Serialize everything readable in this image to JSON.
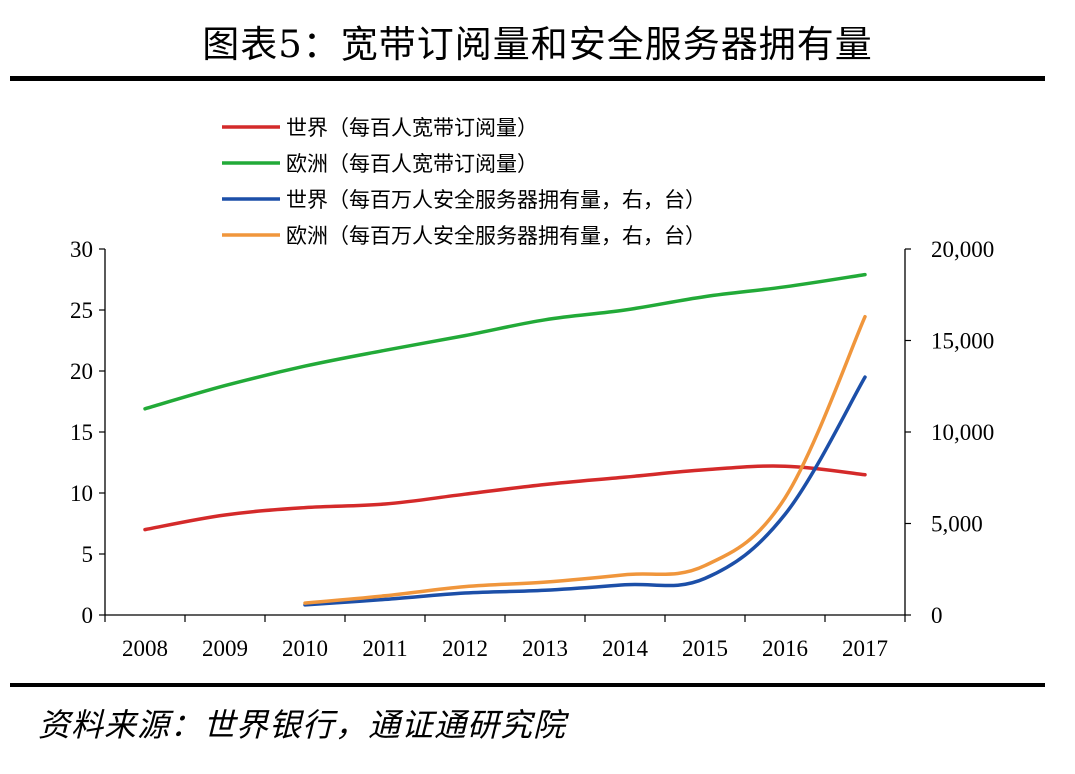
{
  "title": "图表5：宽带订阅量和安全服务器拥有量",
  "source": "资料来源：世界银行，通证通研究院",
  "chart_data": {
    "type": "line",
    "x": [
      2008,
      2009,
      2010,
      2011,
      2012,
      2013,
      2014,
      2015,
      2016,
      2017
    ],
    "x_tick_labels": [
      "2008",
      "2009",
      "2010",
      "2011",
      "2012",
      "2013",
      "2014",
      "2015",
      "2016",
      "2017"
    ],
    "y_left": {
      "min": 0,
      "max": 30,
      "ticks": [
        0,
        5,
        10,
        15,
        20,
        25,
        30
      ],
      "tick_labels": [
        "0",
        "5",
        "10",
        "15",
        "20",
        "25",
        "30"
      ]
    },
    "y_right": {
      "min": 0,
      "max": 20000,
      "ticks": [
        0,
        5000,
        10000,
        15000,
        20000
      ],
      "tick_labels": [
        "0",
        "5,000",
        "10,000",
        "15,000",
        "20,000"
      ]
    },
    "legend_placement": "top-left",
    "grid": false,
    "series": [
      {
        "name": "世界（每百人宽带订阅量）",
        "axis": "left",
        "color": "#d42a2a",
        "x": [
          2008,
          2009,
          2010,
          2011,
          2012,
          2013,
          2014,
          2015,
          2016,
          2017
        ],
        "values": [
          7.0,
          8.2,
          8.8,
          9.1,
          9.9,
          10.7,
          11.3,
          11.9,
          12.2,
          11.5
        ]
      },
      {
        "name": "欧洲（每百人宽带订阅量）",
        "axis": "left",
        "color": "#22aa38",
        "x": [
          2008,
          2009,
          2010,
          2011,
          2012,
          2013,
          2014,
          2015,
          2016,
          2017
        ],
        "values": [
          16.9,
          18.8,
          20.4,
          21.7,
          22.9,
          24.2,
          25.0,
          26.1,
          26.9,
          27.9
        ]
      },
      {
        "name": "世界（每百万人安全服务器拥有量，右，台）",
        "axis": "right",
        "color": "#1c4fa8",
        "x": [
          2010,
          2011,
          2012,
          2013,
          2014,
          2015,
          2016,
          2017
        ],
        "values": [
          550,
          850,
          1200,
          1350,
          1650,
          2000,
          5500,
          13000
        ]
      },
      {
        "name": "欧洲（每百万人安全服务器拥有量，右，台）",
        "axis": "right",
        "color": "#f0963c",
        "x": [
          2010,
          2011,
          2012,
          2013,
          2014,
          2015,
          2016,
          2017
        ],
        "values": [
          650,
          1050,
          1550,
          1800,
          2200,
          2700,
          6400,
          16300
        ]
      }
    ]
  }
}
